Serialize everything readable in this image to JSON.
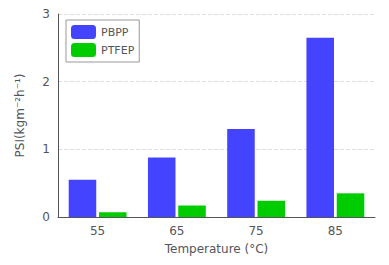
{
  "chart_data": {
    "type": "bar",
    "categories": [
      "55",
      "65",
      "75",
      "85"
    ],
    "series": [
      {
        "name": "PBPP",
        "color": "#4444FF",
        "values": [
          0.55,
          0.88,
          1.3,
          2.65
        ]
      },
      {
        "name": "PTFEP",
        "color": "#00CC00",
        "values": [
          0.07,
          0.17,
          0.24,
          0.35
        ]
      }
    ],
    "xlabel": "Temperature (°C)",
    "ylabel": "PSI(kgm⁻²h⁻¹)",
    "ylim": [
      0,
      3
    ],
    "yticks": [
      0,
      1,
      2,
      3
    ],
    "grid": true,
    "legend": "upper left"
  }
}
